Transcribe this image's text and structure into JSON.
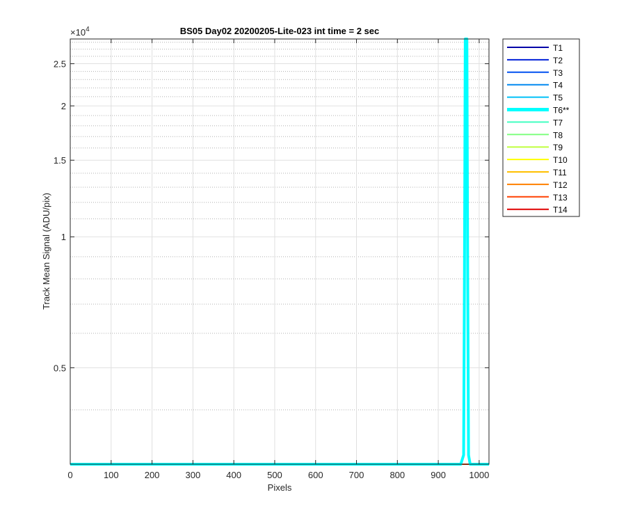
{
  "chart_data": {
    "type": "line",
    "title": "BS05 Day02 20200205-Lite-023 int time = 2 sec",
    "xlabel": "Pixels",
    "ylabel": "Track Mean Signal (ADU/pix)",
    "y_scale": "log",
    "y_exponent_label": "×10",
    "y_exponent_power": "4",
    "xlim": [
      0,
      1024
    ],
    "ylim": [
      3000,
      28500
    ],
    "x_ticks": [
      0,
      100,
      200,
      300,
      400,
      500,
      600,
      700,
      800,
      900,
      1000
    ],
    "x_tick_labels": [
      "0",
      "100",
      "200",
      "300",
      "400",
      "500",
      "600",
      "700",
      "800",
      "900",
      "1000"
    ],
    "y_ticks": [
      5000,
      10000,
      15000,
      20000,
      25000
    ],
    "y_tick_labels": [
      "0.5",
      "1",
      "1.5",
      "2",
      "2.5"
    ],
    "y_minor_grid": [
      4000,
      6000,
      7000,
      8000,
      9000,
      11000,
      12000,
      13000,
      14000,
      16000,
      17000,
      18000,
      19000,
      21000,
      22000,
      23000,
      24000,
      26000,
      27000,
      28000
    ],
    "grid": true,
    "legend_position": "outside-right",
    "baseline_value": 3000,
    "series": [
      {
        "name": "T1",
        "color": "#0000a8",
        "x": [
          0,
          1024
        ],
        "y": [
          3000,
          3000
        ]
      },
      {
        "name": "T2",
        "color": "#0020d8",
        "x": [
          0,
          1024
        ],
        "y": [
          3000,
          3000
        ]
      },
      {
        "name": "T3",
        "color": "#0050f0",
        "x": [
          0,
          1024
        ],
        "y": [
          3000,
          3000
        ]
      },
      {
        "name": "T4",
        "color": "#0088f0",
        "x": [
          0,
          1024
        ],
        "y": [
          3000,
          3000
        ]
      },
      {
        "name": "T5",
        "color": "#00c0f8",
        "x": [
          0,
          1024
        ],
        "y": [
          3000,
          3000
        ]
      },
      {
        "name": "T6**",
        "color": "#00ffff",
        "highlight": true,
        "x": [
          0,
          955,
          962,
          964,
          966,
          968,
          970,
          972,
          974,
          978,
          1024
        ],
        "y": [
          3000,
          3000,
          3150,
          8000,
          28500,
          28500,
          28500,
          8000,
          3150,
          3000,
          3000
        ]
      },
      {
        "name": "T7",
        "color": "#40ffc0",
        "x": [
          0,
          1024
        ],
        "y": [
          3000,
          3000
        ]
      },
      {
        "name": "T8",
        "color": "#80ff80",
        "x": [
          0,
          1024
        ],
        "y": [
          3000,
          3000
        ]
      },
      {
        "name": "T9",
        "color": "#c0ff40",
        "x": [
          0,
          1024
        ],
        "y": [
          3000,
          3000
        ]
      },
      {
        "name": "T10",
        "color": "#ffff00",
        "x": [
          0,
          1024
        ],
        "y": [
          3000,
          3000
        ]
      },
      {
        "name": "T11",
        "color": "#ffc000",
        "x": [
          0,
          1024
        ],
        "y": [
          3000,
          3000
        ]
      },
      {
        "name": "T12",
        "color": "#ff8000",
        "x": [
          0,
          1024
        ],
        "y": [
          3000,
          3000
        ]
      },
      {
        "name": "T13",
        "color": "#ff4000",
        "x": [
          0,
          1024
        ],
        "y": [
          3000,
          3000
        ]
      },
      {
        "name": "T14",
        "color": "#e00000",
        "x": [
          0,
          1024
        ],
        "y": [
          3000,
          3000
        ]
      }
    ]
  }
}
